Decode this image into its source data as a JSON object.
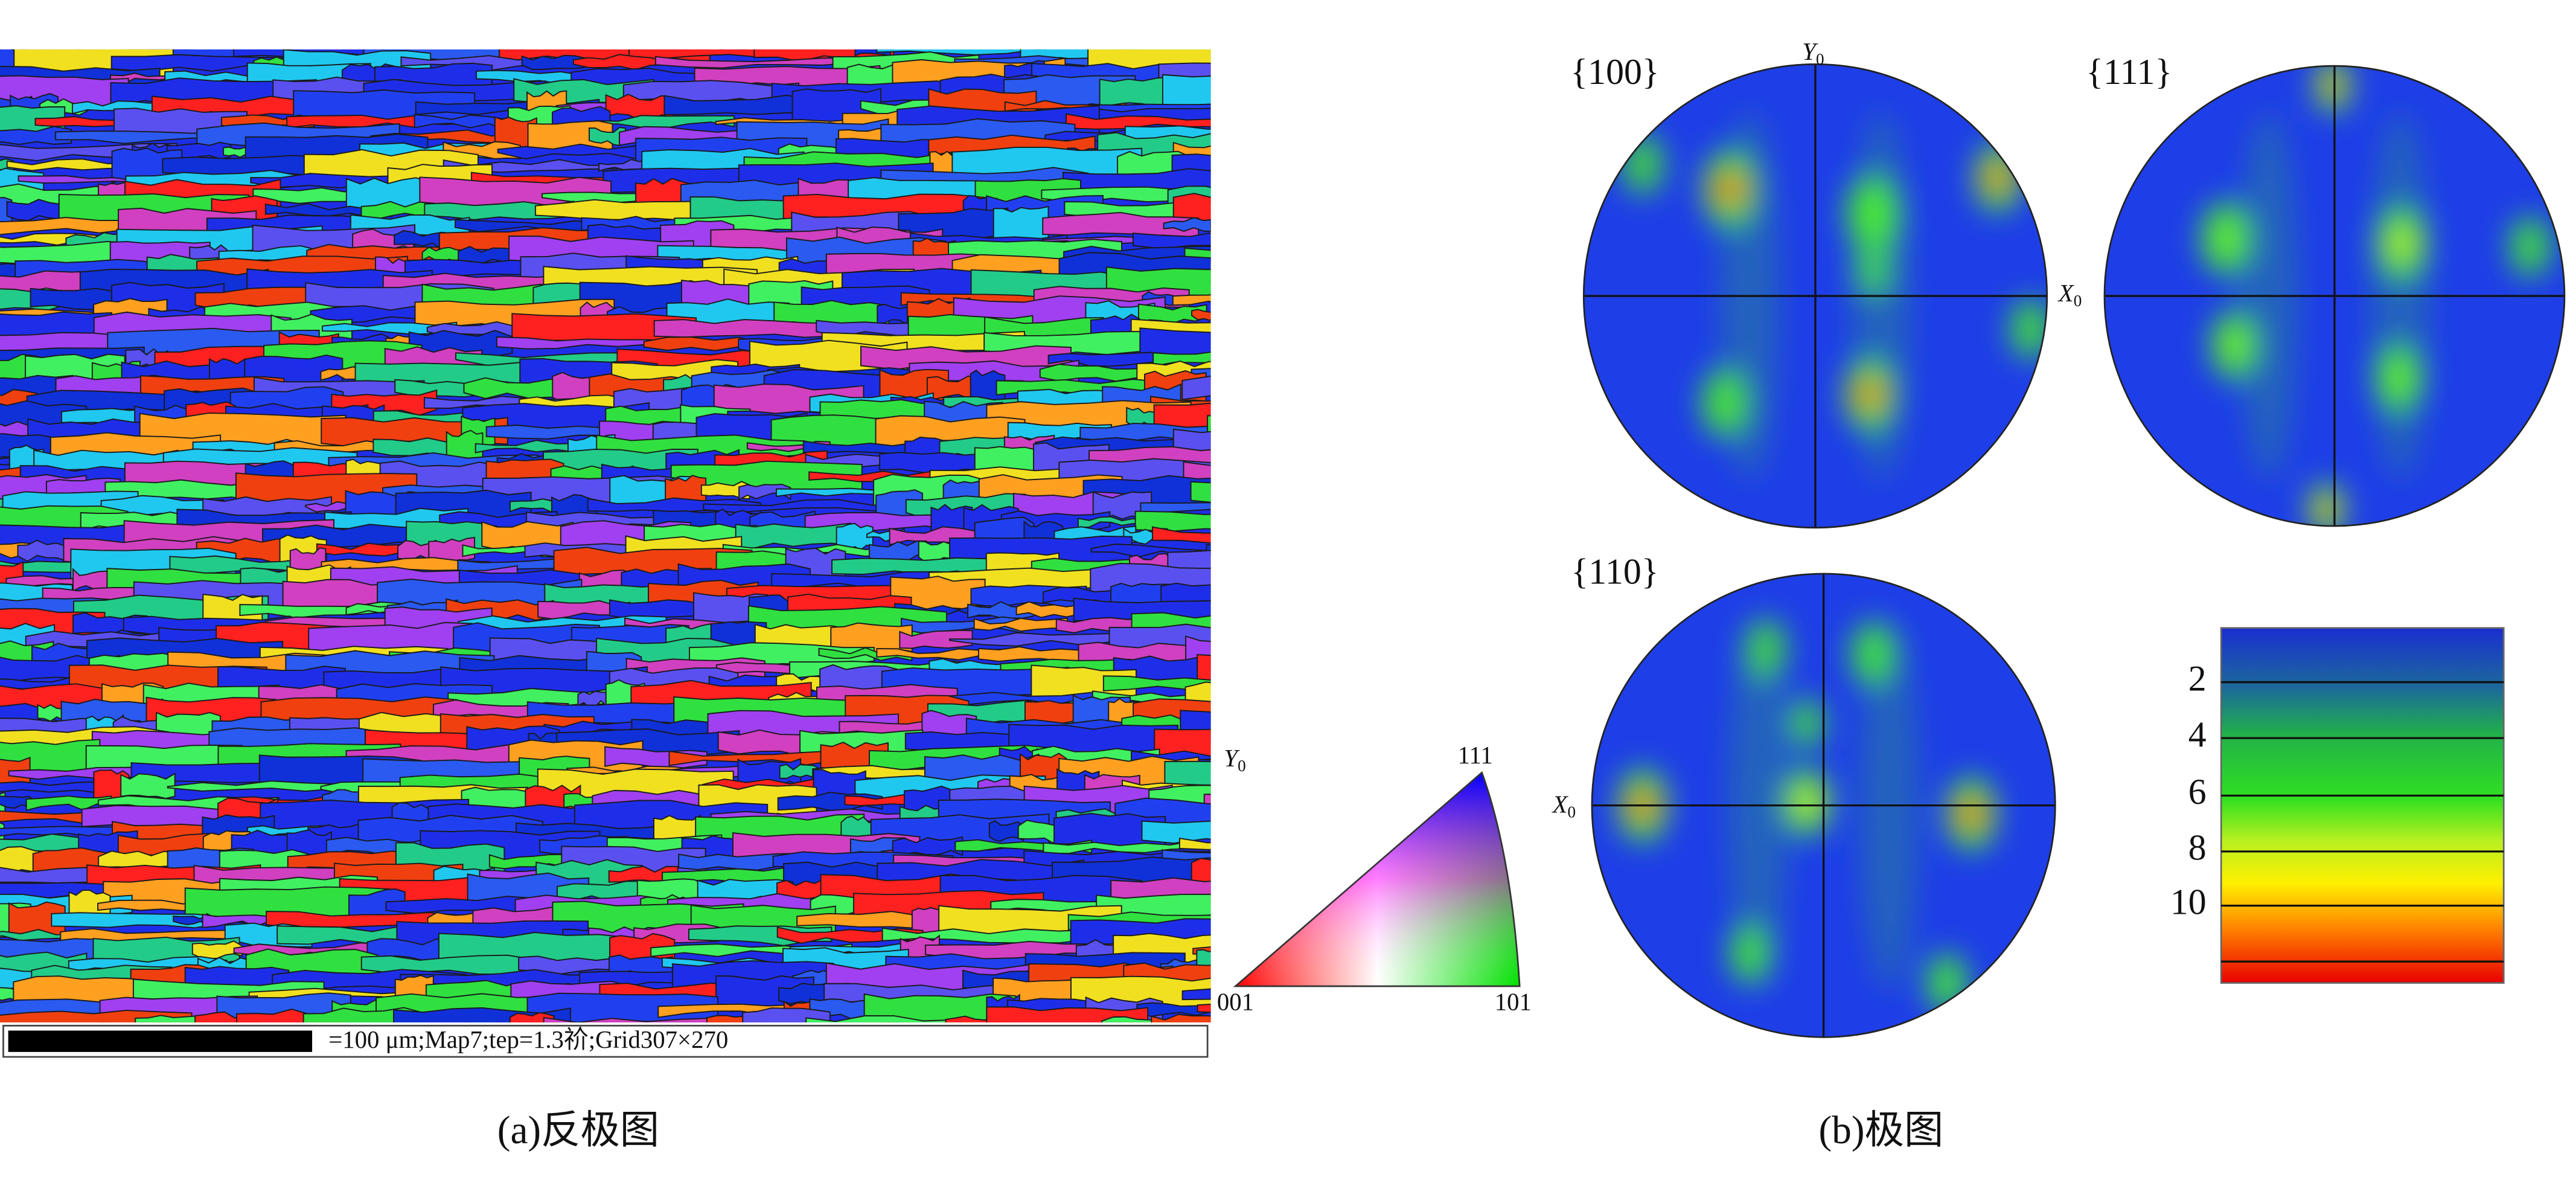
{
  "figure_a": {
    "caption": "(a)反极图",
    "scale_bar_text": "=100 μm;Map7;tep=1.3祄;Grid307×270",
    "axis_label": {
      "letter": "Y",
      "subscript": "0"
    },
    "triangle_labels": {
      "top": "111",
      "left": "001",
      "right": "101"
    }
  },
  "figure_b": {
    "caption": "(b)极图",
    "pole_figures": [
      {
        "label": "{100}",
        "y_axis_label": {
          "letter": "Y",
          "subscript": "0"
        },
        "x_axis_label": {
          "letter": "X",
          "subscript": "0"
        }
      },
      {
        "label": "{111}"
      },
      {
        "label": "{110}",
        "x_axis_label": {
          "letter": "X",
          "subscript": "0"
        }
      }
    ],
    "legend_ticks": [
      2,
      4,
      6,
      8,
      10
    ]
  }
}
